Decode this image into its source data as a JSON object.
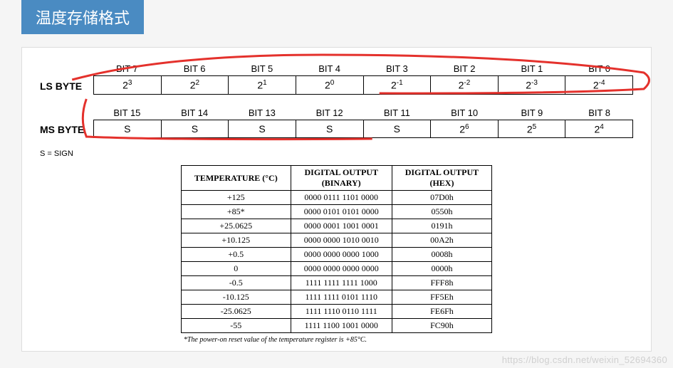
{
  "title": "温度存储格式",
  "ls": {
    "label": "LS BYTE",
    "headers": [
      "BIT 7",
      "BIT 6",
      "BIT 5",
      "BIT 4",
      "BIT 3",
      "BIT 2",
      "BIT 1",
      "BIT 0"
    ],
    "values": [
      {
        "base": "2",
        "exp": "3"
      },
      {
        "base": "2",
        "exp": "2"
      },
      {
        "base": "2",
        "exp": "1"
      },
      {
        "base": "2",
        "exp": "0"
      },
      {
        "base": "2",
        "exp": "-1"
      },
      {
        "base": "2",
        "exp": "-2"
      },
      {
        "base": "2",
        "exp": "-3"
      },
      {
        "base": "2",
        "exp": "-4"
      }
    ]
  },
  "ms": {
    "label": "MS BYTE",
    "headers": [
      "BIT 15",
      "BIT 14",
      "BIT 13",
      "BIT 12",
      "BIT 11",
      "BIT 10",
      "BIT 9",
      "BIT 8"
    ],
    "values": [
      {
        "text": "S"
      },
      {
        "text": "S"
      },
      {
        "text": "S"
      },
      {
        "text": "S"
      },
      {
        "text": "S"
      },
      {
        "base": "2",
        "exp": "6"
      },
      {
        "base": "2",
        "exp": "5"
      },
      {
        "base": "2",
        "exp": "4"
      }
    ]
  },
  "sign_note": "S = SIGN",
  "conv": {
    "headers": [
      "TEMPERATURE (°C)",
      "DIGITAL OUTPUT\n(BINARY)",
      "DIGITAL OUTPUT\n(HEX)"
    ],
    "rows": [
      [
        "+125",
        "0000 0111 1101 0000",
        "07D0h"
      ],
      [
        "+85*",
        "0000 0101 0101 0000",
        "0550h"
      ],
      [
        "+25.0625",
        "0000 0001 1001 0001",
        "0191h"
      ],
      [
        "+10.125",
        "0000 0000 1010 0010",
        "00A2h"
      ],
      [
        "+0.5",
        "0000 0000 0000 1000",
        "0008h"
      ],
      [
        "0",
        "0000 0000 0000 0000",
        "0000h"
      ],
      [
        "-0.5",
        "1111 1111 1111 1000",
        "FFF8h"
      ],
      [
        "-10.125",
        "1111 1111 0101 1110",
        "FF5Eh"
      ],
      [
        "-25.0625",
        "1111 1110 0110 1111",
        "FE6Fh"
      ],
      [
        "-55",
        "1111 1100 1001 0000",
        "FC90h"
      ]
    ],
    "footnote": "*The power-on reset value of the temperature register is +85°C."
  },
  "annotation_color": "#e4312c",
  "watermark": "https://blog.csdn.net/weixin_52694360"
}
